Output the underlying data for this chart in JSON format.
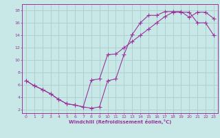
{
  "xlabel": "Windchill (Refroidissement éolien,°C)",
  "bg_color": "#c8e8e8",
  "grid_color": "#b0d0d0",
  "line_color": "#993399",
  "xlim": [
    -0.5,
    23.5
  ],
  "ylim": [
    1.5,
    19
  ],
  "xticks": [
    0,
    1,
    2,
    3,
    4,
    5,
    6,
    7,
    8,
    9,
    10,
    11,
    12,
    13,
    14,
    15,
    16,
    17,
    18,
    19,
    20,
    21,
    22,
    23
  ],
  "yticks": [
    2,
    4,
    6,
    8,
    10,
    12,
    14,
    16,
    18
  ],
  "line1_x": [
    0,
    1,
    2,
    3,
    4,
    5,
    6,
    7,
    8,
    9,
    10,
    11,
    12,
    13,
    14,
    15,
    16,
    17,
    18,
    19,
    20,
    21,
    22,
    23
  ],
  "line1_y": [
    6.7,
    5.9,
    5.3,
    4.6,
    3.7,
    3.0,
    2.8,
    2.5,
    2.3,
    2.5,
    6.7,
    7.0,
    10.9,
    14.1,
    16.0,
    17.2,
    17.2,
    17.8,
    17.8,
    17.8,
    16.9,
    17.7,
    17.7,
    16.7
  ],
  "line2_x": [
    0,
    1,
    2,
    3,
    4,
    5,
    6,
    7,
    8,
    9,
    10,
    11,
    12,
    13,
    14,
    15,
    16,
    17,
    18,
    19,
    20,
    21,
    22,
    23
  ],
  "line2_y": [
    6.7,
    5.9,
    5.3,
    4.6,
    3.7,
    3.0,
    2.8,
    2.5,
    6.8,
    7.0,
    10.9,
    11.0,
    12.0,
    13.0,
    14.0,
    15.0,
    16.0,
    17.0,
    17.7,
    17.7,
    17.7,
    16.0,
    16.0,
    14.0
  ]
}
